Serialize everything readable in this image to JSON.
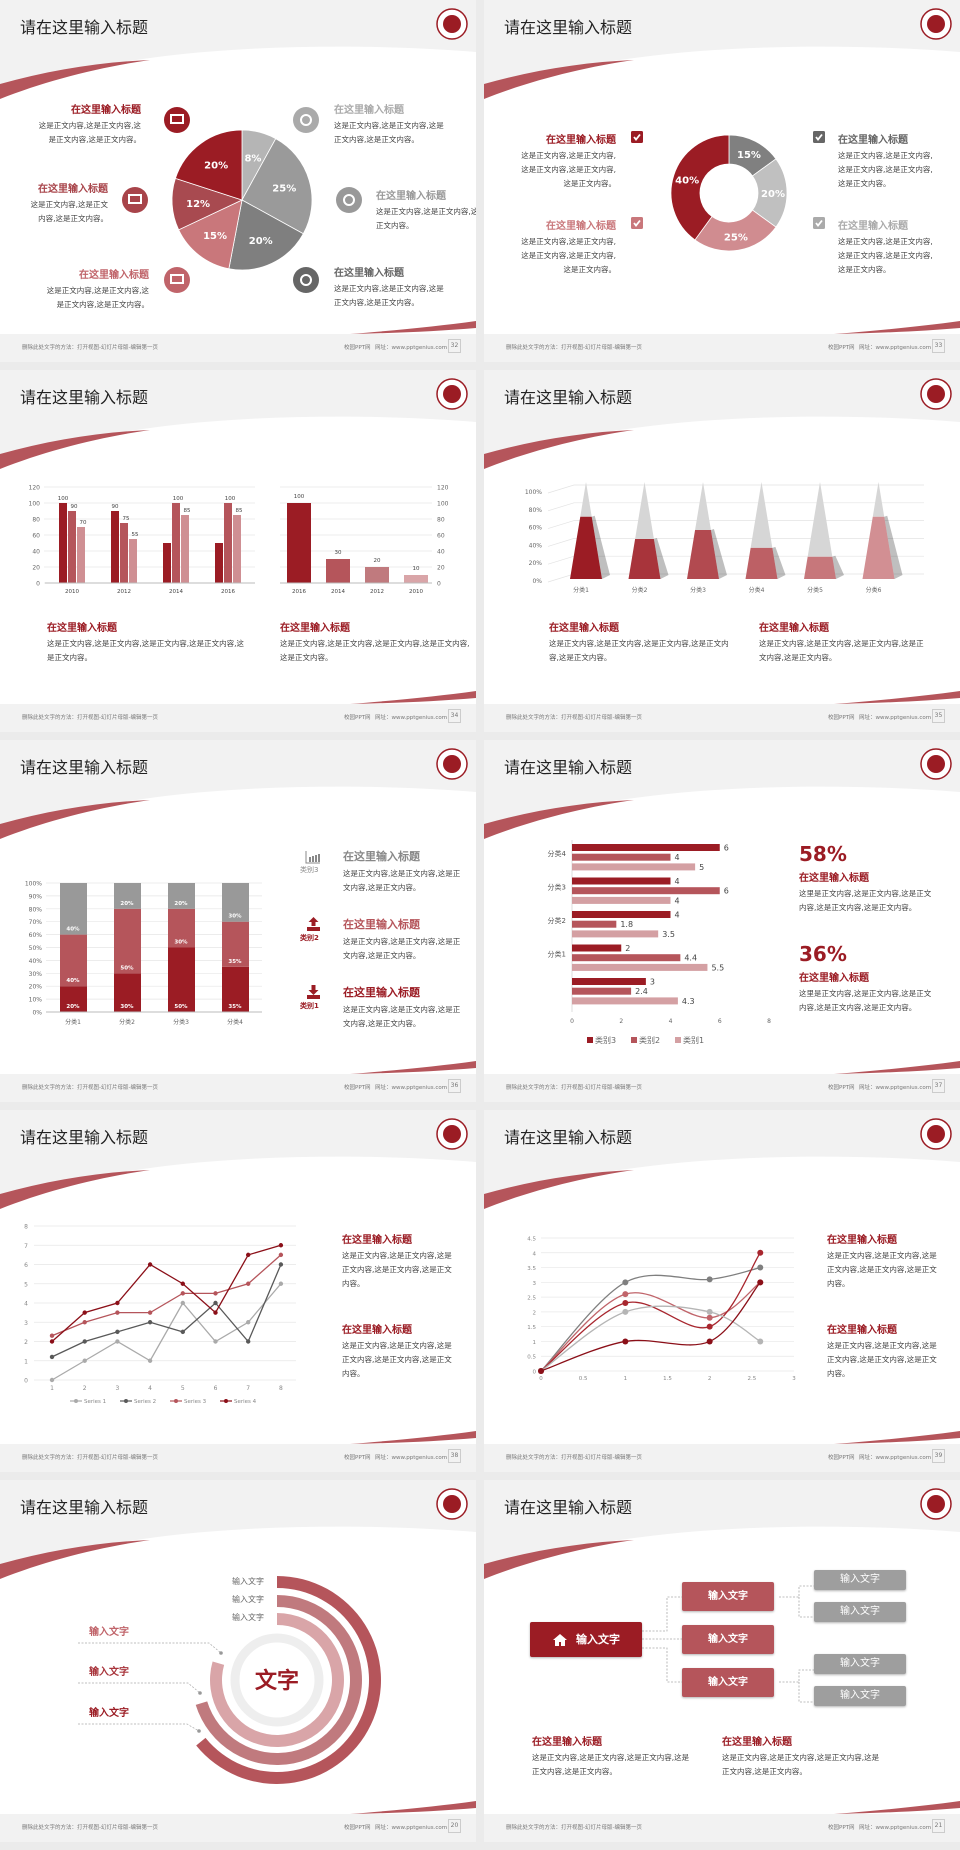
{
  "footer": {
    "left": "删除此处文字的方法：打开视图-幻灯片母版-编辑第一页",
    "site": "校园PPT网",
    "url": "网址：www.pptgenius.com"
  },
  "colors": {
    "dark_red": "#9b1c24",
    "mid_red": "#b5555b",
    "light_red": "#cf8f93",
    "gray_dark": "#7f7f7f",
    "gray_mid": "#9a9a9a",
    "gray_light": "#c0c0c0"
  },
  "slides": [
    {
      "title": "请在这里输入标题",
      "page": "32",
      "blocks": [
        {
          "title": "在这里输入标题",
          "body": "这是正文内容,这是正文内容,这是正文内容,这是正文内容。",
          "icon": "monitor-icon"
        },
        {
          "title": "在这里输入标题",
          "body": "这是正文内容,这是正文内容,这是正文内容。",
          "icon": "car-icon"
        },
        {
          "title": "在这里输入标题",
          "body": "这是正文内容,这是正文内容,这是正文内容,这是正文内容。",
          "icon": "book-icon"
        },
        {
          "title": "在这里输入标题",
          "body": "这是正文内容,这是正文内容,这是正文内容,这是正文内容。",
          "icon": "phone-icon"
        },
        {
          "title": "在这里输入标题",
          "body": "这是正文内容,这是正文内容,这是正文内容。",
          "icon": "binoculars-icon"
        },
        {
          "title": "在这里输入标题",
          "body": "这是正文内容,这是正文内容,这是正文内容,这是正文内容。",
          "icon": "bicycle-icon"
        }
      ]
    },
    {
      "title": "请在这里输入标题",
      "page": "33",
      "blocks": [
        {
          "title": "在这里输入标题",
          "body": "这是正文内容,这是正文内容,这是正文内容,这是正文内容,这是正文内容。"
        },
        {
          "title": "在这里输入标题",
          "body": "这是正文内容,这是正文内容,这是正文内容,这是正文内容,这是正文内容。"
        },
        {
          "title": "在这里输入标题",
          "body": "这是正文内容,这是正文内容,这是正文内容,这是正文内容,这是正文内容。"
        },
        {
          "title": "在这里输入标题",
          "body": "这是正文内容,这是正文内容,这是正文内容,这是正文内容,这是正文内容。"
        }
      ]
    },
    {
      "title": "请在这里输入标题",
      "page": "34",
      "blocks": [
        {
          "title": "在这里输入标题",
          "body": "这是正文内容,这是正文内容,这是正文内容,这是正文内容,这是正文内容。"
        },
        {
          "title": "在这里输入标题",
          "body": "这是正文内容,这是正文内容,这是正文内容,这是正文内容,这是正文内容。"
        }
      ]
    },
    {
      "title": "请在这里输入标题",
      "page": "35",
      "blocks": [
        {
          "title": "在这里输入标题",
          "body": "这是正文内容,这是正文内容,这是正文内容,这是正文内容,这是正文内容。"
        },
        {
          "title": "在这里输入标题",
          "body": "这是正文内容,这是正文内容,这是正文内容,这是正文内容,这是正文内容。"
        }
      ]
    },
    {
      "title": "请在这里输入标题",
      "page": "36",
      "blocks": [
        {
          "title": "在这里输入标题",
          "body": "这是正文内容,这是正文内容,这是正文内容,这是正文内容。",
          "icon_label": "类别3",
          "icon": "bar-chart-icon"
        },
        {
          "title": "在这里输入标题",
          "body": "这是正文内容,这是正文内容,这是正文内容,这是正文内容。",
          "icon_label": "类别2",
          "icon": "upload-icon"
        },
        {
          "title": "在这里输入标题",
          "body": "这是正文内容,这是正文内容,这是正文内容,这是正文内容。",
          "icon_label": "类别1",
          "icon": "download-icon"
        }
      ]
    },
    {
      "title": "请在这里输入标题",
      "page": "37",
      "blocks": [
        {
          "value": "58%",
          "title": "在这里输入标题",
          "body": "这里是正文内容,这是正文内容,这是正文内容,这是正文内容,这是正文内容。"
        },
        {
          "value": "36%",
          "title": "在这里输入标题",
          "body": "这里是正文内容,这是正文内容,这是正文内容,这是正文内容,这是正文内容。"
        }
      ]
    },
    {
      "title": "请在这里输入标题",
      "page": "38",
      "blocks": [
        {
          "title": "在这里输入标题",
          "body": "这是正文内容,这是正文内容,这是正文内容,这是正文内容,这是正文内容。"
        },
        {
          "title": "在这里输入标题",
          "body": "这是正文内容,这是正文内容,这是正文内容,这是正文内容,这是正文内容。"
        }
      ]
    },
    {
      "title": "请在这里输入标题",
      "page": "39",
      "blocks": [
        {
          "title": "在这里输入标题",
          "body": "这是正文内容,这是正文内容,这是正文内容,这是正文内容,这是正文内容。"
        },
        {
          "title": "在这里输入标题",
          "body": "这是正文内容,这是正文内容,这是正文内容,这是正文内容,这是正文内容。"
        }
      ]
    },
    {
      "title": "请在这里输入标题",
      "page": "20",
      "center_text": "文字",
      "ring_labels": [
        "输入文字",
        "输入文字",
        "输入文字"
      ],
      "side_labels": [
        "输入文字",
        "输入文字",
        "输入文字"
      ]
    },
    {
      "title": "请在这里输入标题",
      "page": "21",
      "root": "输入文字",
      "mid": [
        "输入文字",
        "输入文字",
        "输入文字"
      ],
      "leaves": [
        "输入文字",
        "输入文字",
        "输入文字",
        "输入文字"
      ],
      "blocks": [
        {
          "title": "在这里输入标题",
          "body": "这是正文内容,这是正文内容,这是正文内容,这是正文内容,这是正文内容。"
        },
        {
          "title": "在这里输入标题",
          "body": "这是正文内容,这是正文内容,这是正文内容,这是正文内容,这是正文内容。"
        }
      ]
    }
  ],
  "chart_data": [
    {
      "type": "pie",
      "values": [
        8,
        25,
        20,
        15,
        12,
        20
      ],
      "labels": [
        "8%",
        "25%",
        "20%",
        "15%",
        "12%",
        "20%"
      ],
      "colors": [
        "#b5b5b5",
        "#9a9a9a",
        "#7f7f7f",
        "#c9777b",
        "#a84a50",
        "#9b1c24"
      ]
    },
    {
      "type": "pie",
      "donut": true,
      "values": [
        15,
        20,
        25,
        40
      ],
      "labels": [
        "15%",
        "20%",
        "25%",
        "40%"
      ],
      "colors": [
        "#808080",
        "#c0c0c0",
        "#d08c90",
        "#9b1c24"
      ]
    },
    {
      "type": "bar",
      "categories": [
        "2010",
        "2012",
        "2014",
        "2016"
      ],
      "ylim": [
        0,
        120
      ],
      "yticks": [
        "0",
        "20",
        "40",
        "60",
        "80",
        "100",
        "120"
      ],
      "grid": true,
      "series": [
        {
          "values": [
            100,
            90,
            50,
            50
          ],
          "labels": [
            "100",
            "90",
            "",
            ""
          ],
          "color": "#9b1c24"
        },
        {
          "values": [
            90,
            75,
            100,
            100
          ],
          "labels": [
            "90",
            "75",
            "100",
            "100"
          ],
          "color": "#b5555b"
        },
        {
          "values": [
            70,
            55,
            85,
            85
          ],
          "labels": [
            "70",
            "55",
            "85",
            "85"
          ],
          "color": "#cf8f93"
        }
      ]
    },
    {
      "type": "bar",
      "categories": [
        "2016",
        "2014",
        "2012",
        "2010"
      ],
      "values": [
        100,
        30,
        20,
        10
      ],
      "labels": [
        "100",
        "30",
        "20",
        "10"
      ],
      "ylim": [
        0,
        120
      ],
      "yticks": [
        "0",
        "20",
        "40",
        "60",
        "80",
        "100",
        "120"
      ],
      "y_axis_side": "right",
      "grid": true,
      "colors": [
        "#9b1c24",
        "#b5555b",
        "#c07a7e",
        "#d9a5a8"
      ]
    },
    {
      "type": "bar",
      "style": "3d-pyramid",
      "categories": [
        "分类1",
        "分类2",
        "分类3",
        "分类4",
        "分类5",
        "分类6"
      ],
      "values": [
        70,
        45,
        55,
        35,
        25,
        70
      ],
      "ylim": [
        0,
        100
      ],
      "yticks": [
        "0%",
        "20%",
        "40%",
        "60%",
        "80%",
        "100%"
      ],
      "grid": true,
      "colors": [
        "#9b1c24",
        "#a8343b",
        "#b24a50",
        "#bd6065",
        "#c7777b",
        "#d28f93"
      ]
    },
    {
      "type": "bar",
      "stacked": "percent",
      "categories": [
        "分类1",
        "分类2",
        "分类3",
        "分类4"
      ],
      "yticks": [
        "0%",
        "10%",
        "20%",
        "30%",
        "40%",
        "50%",
        "60%",
        "70%",
        "80%",
        "90%",
        "100%"
      ],
      "grid": true,
      "series": [
        {
          "name": "类别1",
          "values": [
            20,
            30,
            50,
            35
          ],
          "labels": [
            "20%",
            "30%",
            "50%",
            "35%"
          ],
          "color": "#9b1c24"
        },
        {
          "name": "类别2",
          "values": [
            40,
            50,
            30,
            35
          ],
          "labels": [
            "40%",
            "50%",
            "30%",
            "35%"
          ],
          "color": "#b5555b"
        },
        {
          "name": "类别3",
          "values": [
            40,
            20,
            20,
            30
          ],
          "labels": [
            "40%",
            "20%",
            "20%",
            "30%"
          ],
          "color": "#999999"
        }
      ]
    },
    {
      "type": "bar",
      "orientation": "horizontal",
      "categories": [
        "分类4",
        "分类3",
        "分类2",
        "分类1",
        ""
      ],
      "xlim": [
        0,
        8
      ],
      "xticks": [
        "0",
        "2",
        "4",
        "6",
        "8"
      ],
      "legend": "bottom",
      "series": [
        {
          "name": "类别3",
          "values": [
            6,
            4,
            4,
            2,
            3
          ],
          "color": "#9b1c24"
        },
        {
          "name": "类别2",
          "values": [
            4,
            6,
            1.8,
            4.4,
            2.4
          ],
          "color": "#b5555b"
        },
        {
          "name": "类别1",
          "values": [
            5,
            4,
            3.5,
            5.5,
            4.3
          ],
          "color": "#d4a0a3"
        }
      ]
    },
    {
      "type": "line",
      "x": [
        1,
        2,
        3,
        4,
        5,
        6,
        7,
        8
      ],
      "ylim": [
        0,
        8
      ],
      "yticks": [
        "0",
        "1",
        "2",
        "3",
        "4",
        "5",
        "6",
        "7",
        "8"
      ],
      "xticks": [
        "1",
        "2",
        "3",
        "4",
        "5",
        "6",
        "7",
        "8"
      ],
      "grid": true,
      "legend": "bottom",
      "series": [
        {
          "name": "Series 1",
          "values": [
            0,
            1,
            2,
            1,
            4,
            2,
            3,
            5
          ],
          "color": "#aaaaaa"
        },
        {
          "name": "Series 2",
          "values": [
            1.2,
            2,
            2.5,
            3,
            2.5,
            4,
            2,
            6
          ],
          "color": "#595959"
        },
        {
          "name": "Series 3",
          "values": [
            2.3,
            3,
            3.5,
            3.5,
            4.5,
            4.5,
            5,
            6.5
          ],
          "color": "#b5555b"
        },
        {
          "name": "Series 4",
          "values": [
            2,
            3.5,
            4,
            6,
            5,
            3.5,
            6.5,
            7
          ],
          "color": "#8b0f18"
        }
      ]
    },
    {
      "type": "scatter",
      "smooth": true,
      "xlim": [
        0,
        3
      ],
      "ylim": [
        0,
        4.5
      ],
      "xticks": [
        "0",
        "0.5",
        "1",
        "1.5",
        "2",
        "2.5",
        "3"
      ],
      "yticks": [
        "0",
        "0.5",
        "1",
        "1.5",
        "2",
        "2.5",
        "3",
        "3.5",
        "4",
        "4.5"
      ],
      "grid": true,
      "series": [
        {
          "x": [
            0,
            1,
            2,
            2.6
          ],
          "values": [
            0,
            3,
            3.1,
            3.5
          ],
          "color": "#7f7f7f"
        },
        {
          "x": [
            0,
            1,
            2,
            2.6
          ],
          "values": [
            0,
            2.6,
            1.8,
            3
          ],
          "color": "#c0646a"
        },
        {
          "x": [
            0,
            1,
            2,
            2.6
          ],
          "values": [
            0,
            2.3,
            1.5,
            4
          ],
          "color": "#a8262e"
        },
        {
          "x": [
            0,
            1,
            2,
            2.6
          ],
          "values": [
            0,
            2,
            2,
            1
          ],
          "color": "#b5b5b5"
        },
        {
          "x": [
            0,
            1,
            2,
            2.6
          ],
          "values": [
            0,
            1,
            1,
            3
          ],
          "color": "#8b0f18"
        }
      ]
    }
  ]
}
